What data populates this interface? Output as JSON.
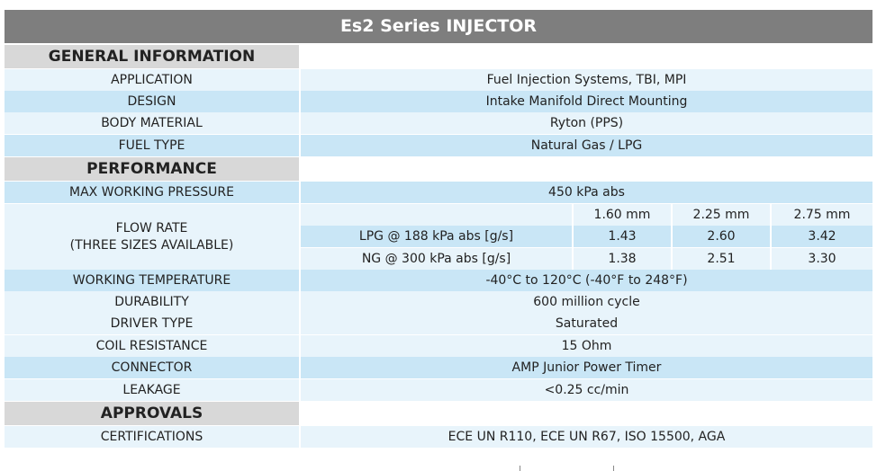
{
  "title": "Es2 Series INJECTOR",
  "sections": {
    "general": "GENERAL INFORMATION",
    "performance": "PERFORMANCE",
    "approvals": "APPROVALS"
  },
  "general": {
    "application": {
      "label": "APPLICATION",
      "value": "Fuel Injection Systems, TBI, MPI"
    },
    "design": {
      "label": "DESIGN",
      "value": "Intake Manifold Direct Mounting"
    },
    "body_material": {
      "label": "BODY MATERIAL",
      "value": "Ryton (PPS)"
    },
    "fuel_type": {
      "label": "FUEL TYPE",
      "value": "Natural Gas / LPG"
    }
  },
  "performance": {
    "max_pressure": {
      "label": "MAX WORKING PRESSURE",
      "value": "450 kPa abs"
    },
    "flow_rate": {
      "label_line1": "FLOW RATE",
      "label_line2": "(THREE SIZES AVAILABLE)",
      "sizes": [
        "1.60 mm",
        "2.25 mm",
        "2.75 mm"
      ],
      "rows": [
        {
          "label": "LPG @ 188 kPa abs [g/s]",
          "values": [
            "1.43",
            "2.60",
            "3.42"
          ]
        },
        {
          "label": "NG @ 300 kPa abs [g/s]",
          "values": [
            "1.38",
            "2.51",
            "3.30"
          ]
        }
      ]
    },
    "working_temp": {
      "label": "WORKING TEMPERATURE",
      "value": "-40°C to 120°C (-40°F to 248°F)"
    },
    "durability": {
      "label": "DURABILITY",
      "value": "600 million cycle"
    },
    "driver_type": {
      "label": "DRIVER TYPE",
      "value": "Saturated"
    },
    "coil_resistance": {
      "label": "COIL RESISTANCE",
      "value": "15 Ohm"
    },
    "connector": {
      "label": "CONNECTOR",
      "value": "AMP Junior Power Timer"
    },
    "leakage": {
      "label": "LEAKAGE",
      "value": "<0.25 cc/min"
    }
  },
  "approvals": {
    "certifications": {
      "label": "CERTIFICATIONS",
      "value": "ECE UN R110, ECE UN R67, ISO 15500, AGA"
    }
  }
}
